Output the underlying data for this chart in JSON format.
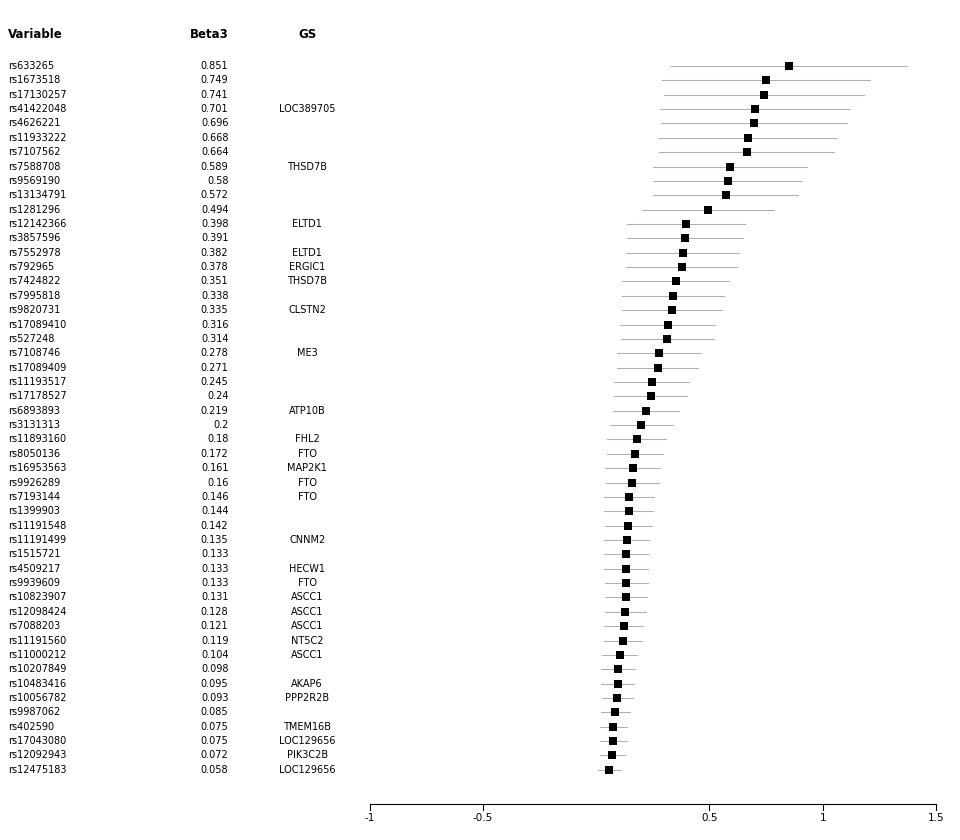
{
  "variables": [
    "rs633265",
    "rs1673518",
    "rs17130257",
    "rs41422048",
    "rs4626221",
    "rs11933222",
    "rs7107562",
    "rs7588708",
    "rs9569190",
    "rs13134791",
    "rs1281296",
    "rs12142366",
    "rs3857596",
    "rs7552978",
    "rs792965",
    "rs7424822",
    "rs7995818",
    "rs9820731",
    "rs17089410",
    "rs527248",
    "rs7108746",
    "rs17089409",
    "rs11193517",
    "rs17178527",
    "rs6893893",
    "rs3131313",
    "rs11893160",
    "rs8050136",
    "rs16953563",
    "rs9926289",
    "rs7193144",
    "rs1399903",
    "rs11191548",
    "rs11191499",
    "rs1515721",
    "rs4509217",
    "rs9939609",
    "rs10823907",
    "rs12098424",
    "rs7088203",
    "rs11191560",
    "rs11000212",
    "rs10207849",
    "rs10483416",
    "rs10056782",
    "rs9987062",
    "rs402590",
    "rs17043080",
    "rs12092943",
    "rs12475183"
  ],
  "beta3": [
    0.851,
    0.749,
    0.741,
    0.701,
    0.696,
    0.668,
    0.664,
    0.589,
    0.58,
    0.572,
    0.494,
    0.398,
    0.391,
    0.382,
    0.378,
    0.351,
    0.338,
    0.335,
    0.316,
    0.314,
    0.278,
    0.271,
    0.245,
    0.24,
    0.219,
    0.2,
    0.18,
    0.172,
    0.161,
    0.16,
    0.146,
    0.144,
    0.142,
    0.135,
    0.133,
    0.133,
    0.133,
    0.131,
    0.128,
    0.121,
    0.119,
    0.104,
    0.098,
    0.095,
    0.093,
    0.085,
    0.075,
    0.075,
    0.072,
    0.058
  ],
  "gs": [
    "",
    "",
    "",
    "LOC389705",
    "",
    "",
    "",
    "THSD7B",
    "",
    "",
    "",
    "ELTD1",
    "",
    "ELTD1",
    "ERGIC1",
    "THSD7B",
    "",
    "CLSTN2",
    "",
    "",
    "ME3",
    "",
    "",
    "",
    "ATP10B",
    "",
    "FHL2",
    "FTO",
    "MAP2K1",
    "FTO",
    "FTO",
    "",
    "",
    "CNNM2",
    "",
    "HECW1",
    "FTO",
    "ASCC1",
    "ASCC1",
    "ASCC1",
    "NT5C2",
    "ASCC1",
    "",
    "AKAP6",
    "PPP2R2B",
    "",
    "TMEM16B",
    "LOC129656",
    "PIK3C2B",
    "LOC129656"
  ],
  "ci_half": [
    0.52,
    0.46,
    0.44,
    0.42,
    0.41,
    0.39,
    0.385,
    0.34,
    0.33,
    0.32,
    0.29,
    0.26,
    0.255,
    0.25,
    0.245,
    0.235,
    0.225,
    0.22,
    0.21,
    0.205,
    0.185,
    0.18,
    0.165,
    0.16,
    0.145,
    0.14,
    0.13,
    0.125,
    0.12,
    0.118,
    0.11,
    0.108,
    0.105,
    0.1,
    0.097,
    0.097,
    0.096,
    0.094,
    0.091,
    0.087,
    0.085,
    0.078,
    0.075,
    0.072,
    0.069,
    0.065,
    0.059,
    0.059,
    0.056,
    0.05
  ],
  "xlim": [
    -1.0,
    1.5
  ],
  "xticks": [
    -1.0,
    -0.5,
    0.5,
    1.0,
    1.5
  ],
  "xticklabels": [
    "-1",
    "-0.5",
    "0.5",
    "1",
    "1.5"
  ],
  "header_variable": "Variable",
  "header_beta3": "Beta3",
  "header_gs": "GS",
  "background_color": "#ffffff",
  "marker_color": "#000000",
  "line_color": "#b0b0b0",
  "text_color": "#000000",
  "header_fontsize": 8.5,
  "row_fontsize": 7.0,
  "marker_size": 5.5
}
